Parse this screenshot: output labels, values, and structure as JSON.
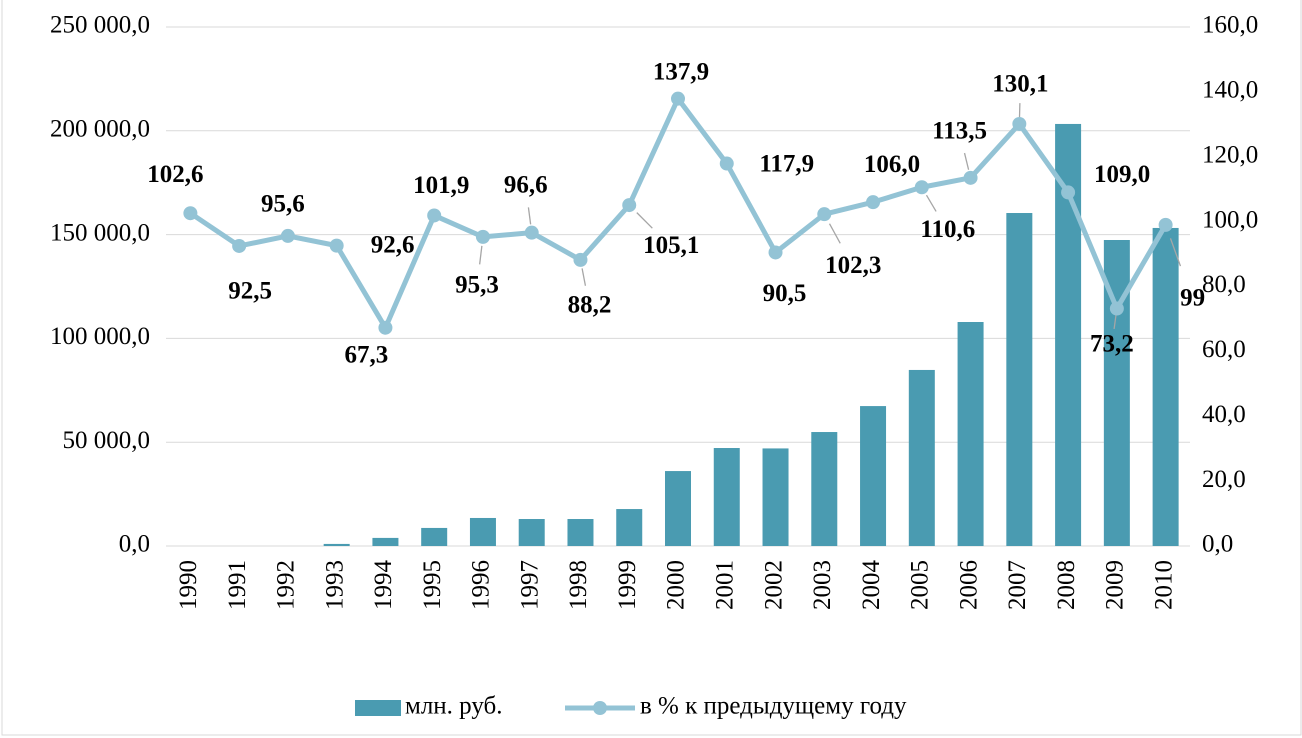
{
  "chart_data": {
    "type": "bar-line",
    "categories": [
      "1990",
      "1991",
      "1992",
      "1993",
      "1994",
      "1995",
      "1996",
      "1997",
      "1998",
      "1999",
      "2000",
      "2001",
      "2002",
      "2003",
      "2004",
      "2005",
      "2006",
      "2007",
      "2008",
      "2009",
      "2010"
    ],
    "series": [
      {
        "name": "млн. руб.",
        "type": "bar",
        "color": "#4a9bb1",
        "axis": "y",
        "values": [
          0,
          0,
          0,
          1000,
          3900,
          8700,
          13500,
          13000,
          13000,
          17800,
          36100,
          47200,
          47000,
          54900,
          67400,
          84800,
          107900,
          160400,
          203300,
          147400,
          153200
        ]
      },
      {
        "name": "в % к предыдущему году",
        "type": "line",
        "color": "#93c3d5",
        "axis": "y2",
        "values": [
          102.6,
          92.5,
          95.6,
          92.6,
          67.3,
          101.9,
          95.3,
          96.6,
          88.2,
          105.1,
          137.9,
          117.9,
          90.5,
          102.3,
          106.0,
          110.6,
          113.5,
          130.1,
          109.0,
          73.2,
          99
        ],
        "value_labels": [
          "102,6",
          "92,5",
          "95,6",
          "92,6",
          "67,3",
          "101,9",
          "95,3",
          "96,6",
          "88,2",
          "105,1",
          "137,9",
          "117,9",
          "90,5",
          "102,3",
          "106,0",
          "110,6",
          "113,5",
          "130,1",
          "109,0",
          "73,2",
          "99"
        ]
      }
    ],
    "ylim": [
      0,
      250000
    ],
    "yticks": [
      {
        "value": 0,
        "label": "0,0"
      },
      {
        "value": 50000,
        "label": "50 000,0"
      },
      {
        "value": 100000,
        "label": "100 000,0"
      },
      {
        "value": 150000,
        "label": "150 000,0"
      },
      {
        "value": 200000,
        "label": "200 000,0"
      },
      {
        "value": 250000,
        "label": "250 000,0"
      }
    ],
    "y2lim": [
      0,
      160
    ],
    "y2ticks": [
      {
        "value": 0,
        "label": "0,0"
      },
      {
        "value": 20,
        "label": "20,0"
      },
      {
        "value": 40,
        "label": "40,0"
      },
      {
        "value": 60,
        "label": "60,0"
      },
      {
        "value": 80,
        "label": "80,0"
      },
      {
        "value": 100,
        "label": "100,0"
      },
      {
        "value": 120,
        "label": "120,0"
      },
      {
        "value": 140,
        "label": "140,0"
      },
      {
        "value": 160,
        "label": "160,0"
      }
    ],
    "grid": true,
    "legend": "bottom"
  }
}
